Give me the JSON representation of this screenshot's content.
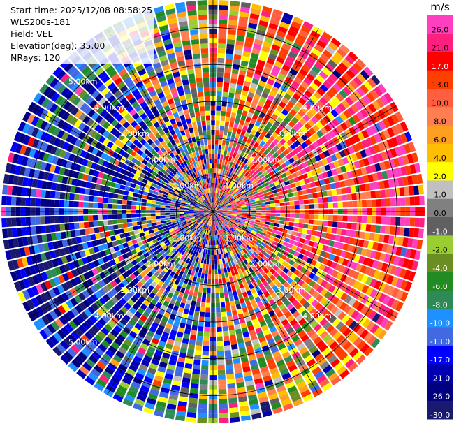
{
  "header": {
    "start_time": "Start time: 2025/12/08 08:58:25",
    "instrument": "WLS200s-181",
    "field": "Field: VEL",
    "elevation": "Elevation(deg): 35.00",
    "nrays": "NRays: 120"
  },
  "chart_data": {
    "type": "heatmap",
    "projection": "polar-ppi",
    "n_rays": 120,
    "range_rings": [
      "1.00km",
      "2.00km",
      "3.00km",
      "4.00km",
      "5.00km"
    ],
    "colorbar": {
      "unit": "m/s",
      "ticks": [
        "26.0",
        "21.0",
        "17.0",
        "13.0",
        "10.0",
        "8.0",
        "6.0",
        "4.0",
        "2.0",
        "1.0",
        "0.0",
        "-1.0",
        "-2.0",
        "-4.0",
        "-6.0",
        "-8.0",
        "-10.0",
        "-13.0",
        "-17.0",
        "-21.0",
        "-26.0",
        "-30.0"
      ],
      "colors": [
        "#ff3fbf",
        "#ff1f7f",
        "#ff0000",
        "#ff3f00",
        "#ff5f3f",
        "#ff7f50",
        "#ff9f1f",
        "#ffbf00",
        "#ffff00",
        "#c0c0c0",
        "#808080",
        "#606060",
        "#9acd32",
        "#6b8e23",
        "#228b22",
        "#2e8b57",
        "#1e90ff",
        "#4169e1",
        "#0000ff",
        "#0000b0",
        "#000080",
        "#191970"
      ]
    },
    "pattern": "velocity dipole: positive (pink/red) toward upper-right and lower-right, negative (blue) toward left, noisy speckle near center"
  }
}
